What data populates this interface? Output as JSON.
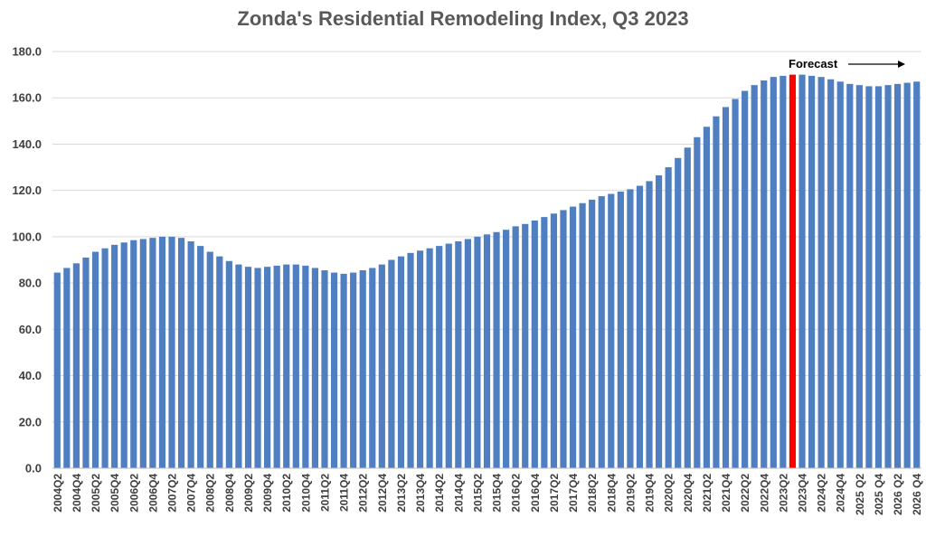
{
  "chart_data": {
    "type": "bar",
    "title": "Zonda's Residential Remodeling Index, Q3 2023",
    "xlabel": "",
    "ylabel": "",
    "ylim": [
      0,
      180
    ],
    "yticks": [
      "0.0",
      "20.0",
      "40.0",
      "60.0",
      "80.0",
      "100.0",
      "120.0",
      "140.0",
      "160.0",
      "180.0"
    ],
    "grid": true,
    "bar_color": "#4f7fc0",
    "highlight_color": "#ff0000",
    "highlight_category": "2023Q3",
    "annotation": {
      "text": "Forecast",
      "arrow": "right"
    },
    "categories": [
      "2004Q2",
      "2004Q3",
      "2004Q4",
      "2005Q1",
      "2005Q2",
      "2005Q3",
      "2005Q4",
      "2006Q1",
      "2006Q2",
      "2006Q3",
      "2006Q4",
      "2007Q1",
      "2007Q2",
      "2007Q3",
      "2007Q4",
      "2008Q1",
      "2008Q2",
      "2008Q3",
      "2008Q4",
      "2009Q1",
      "2009Q2",
      "2009Q3",
      "2009Q4",
      "2010Q1",
      "2010Q2",
      "2010Q3",
      "2010Q4",
      "2011Q1",
      "2011Q2",
      "2011Q3",
      "2011Q4",
      "2012Q1",
      "2012Q2",
      "2012Q3",
      "2012Q4",
      "2013Q1",
      "2013Q2",
      "2013Q3",
      "2013Q4",
      "2014Q1",
      "2014Q2",
      "2014Q3",
      "2014Q4",
      "2015Q1",
      "2015Q2",
      "2015Q3",
      "2015Q4",
      "2016Q1",
      "2016Q2",
      "2016Q3",
      "2016Q4",
      "2017Q1",
      "2017Q2",
      "2017Q3",
      "2017Q4",
      "2018Q1",
      "2018Q2",
      "2018Q3",
      "2018Q4",
      "2019Q1",
      "2019Q2",
      "2019Q3",
      "2019Q4",
      "2020Q1",
      "2020Q2",
      "2020Q3",
      "2020Q4",
      "2021Q1",
      "2021Q2",
      "2021Q3",
      "2021Q4",
      "2022Q1",
      "2022Q2",
      "2022Q3",
      "2022Q4",
      "2023Q1",
      "2023Q2",
      "2023Q3",
      "2023Q4",
      "2024Q1",
      "2024Q2",
      "2024Q3",
      "2024Q4",
      "2025 Q1",
      "2025 Q2",
      "2025 Q3",
      "2025 Q4",
      "2026 Q1",
      "2026 Q2",
      "2026 Q3",
      "2026 Q4"
    ],
    "x_tick_labels": [
      "2004Q2",
      "2004Q4",
      "2005Q2",
      "2005Q4",
      "2006Q2",
      "2006Q4",
      "2007Q2",
      "2007Q4",
      "2008Q2",
      "2008Q4",
      "2009Q2",
      "2009Q4",
      "2010Q2",
      "2010Q4",
      "2011Q2",
      "2011Q4",
      "2012Q2",
      "2012Q4",
      "2013Q2",
      "2013Q4",
      "2014Q2",
      "2014Q4",
      "2015Q2",
      "2015Q4",
      "2016Q2",
      "2016Q4",
      "2017Q2",
      "2017Q4",
      "2018Q2",
      "2018Q4",
      "2019Q2",
      "2019Q4",
      "2020Q2",
      "2020Q4",
      "2021Q2",
      "2021Q4",
      "2022Q2",
      "2022Q4",
      "2023Q2",
      "2023Q4",
      "2024Q2",
      "2024Q4",
      "2025 Q2",
      "2025 Q4",
      "2026 Q2",
      "2026 Q4"
    ],
    "values": [
      84.5,
      86.5,
      88.5,
      91.0,
      93.5,
      95.0,
      96.5,
      97.5,
      98.5,
      99.0,
      99.5,
      100.0,
      100.0,
      99.5,
      98.0,
      96.0,
      93.5,
      91.5,
      89.5,
      88.0,
      87.0,
      86.5,
      87.0,
      87.5,
      88.0,
      88.0,
      87.5,
      86.5,
      85.5,
      84.5,
      84.0,
      84.5,
      85.5,
      86.5,
      88.0,
      90.0,
      91.5,
      93.0,
      94.0,
      95.0,
      96.0,
      97.0,
      98.0,
      99.0,
      100.0,
      101.0,
      102.0,
      103.0,
      104.5,
      105.5,
      107.0,
      108.5,
      110.0,
      111.5,
      113.0,
      114.5,
      116.0,
      117.5,
      118.5,
      119.5,
      120.5,
      122.0,
      124.0,
      126.5,
      130.0,
      134.0,
      138.5,
      143.0,
      147.5,
      152.0,
      156.0,
      159.5,
      163.0,
      165.5,
      167.5,
      169.0,
      169.5,
      170.0,
      170.0,
      169.5,
      169.0,
      168.0,
      167.0,
      166.0,
      165.5,
      165.0,
      165.0,
      165.5,
      166.0,
      166.5,
      167.0
    ]
  }
}
